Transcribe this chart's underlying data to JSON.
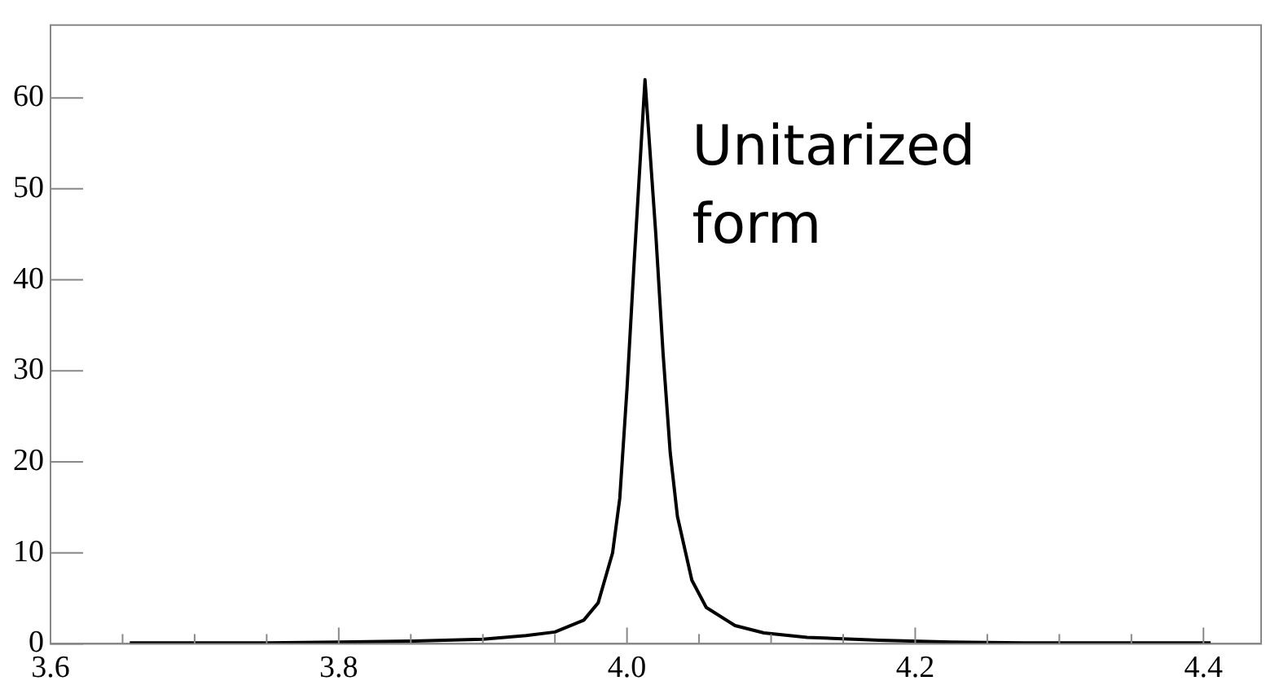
{
  "chart_data": {
    "type": "line",
    "color": "#000000",
    "x": [
      3.655,
      3.7,
      3.75,
      3.8,
      3.85,
      3.9,
      3.93,
      3.95,
      3.97,
      3.98,
      3.99,
      3.995,
      4.0,
      4.005,
      4.0125,
      4.02,
      4.025,
      4.03,
      4.035,
      4.045,
      4.055,
      4.075,
      4.095,
      4.125,
      4.175,
      4.225,
      4.275,
      4.325,
      4.37,
      4.405
    ],
    "values": [
      0.1,
      0.1,
      0.1,
      0.2,
      0.3,
      0.5,
      0.9,
      1.3,
      2.6,
      4.5,
      10,
      16,
      28,
      42,
      62,
      45,
      32,
      21,
      14,
      7,
      4,
      2,
      1.2,
      0.7,
      0.4,
      0.2,
      0.1,
      0.1,
      0.1,
      0.1
    ],
    "xlim": [
      3.6,
      4.44
    ],
    "ylim": [
      0,
      68
    ],
    "xticks": [
      3.6,
      {
        "value": 3.65,
        "label": null
      },
      {
        "value": 3.7,
        "label": null
      },
      {
        "value": 3.75,
        "label": null
      },
      3.8,
      {
        "value": 3.85,
        "label": null
      },
      {
        "value": 3.9,
        "label": null
      },
      {
        "value": 3.95,
        "label": null
      },
      {
        "value": 4,
        "label": "4.0"
      },
      {
        "value": 4.05,
        "label": null
      },
      {
        "value": 4.1,
        "label": null
      },
      {
        "value": 4.15,
        "label": null
      },
      4.2,
      {
        "value": 4.25,
        "label": null
      },
      {
        "value": 4.3,
        "label": null
      },
      {
        "value": 4.35,
        "label": null
      },
      4.4
    ],
    "yticks": [
      0,
      10,
      20,
      30,
      40,
      50,
      60
    ],
    "annotations": [
      "Unitarized form"
    ],
    "legend": false,
    "marker": "none",
    "line_style": "solid",
    "grid": false
  }
}
